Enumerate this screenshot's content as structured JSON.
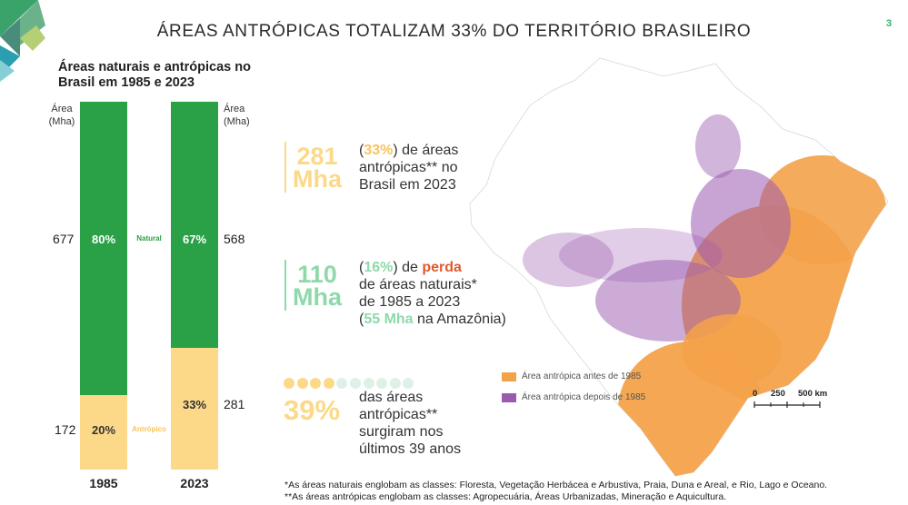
{
  "page": {
    "title": "ÁREAS ANTRÓPICAS TOTALIZAM 33% DO TERRITÓRIO BRASILEIRO",
    "page_number": "3"
  },
  "colors": {
    "natural": "#2aa147",
    "antropico": "#fcd988",
    "antropico_text": "#f7c35f",
    "natural_text": "#8ed9aa",
    "loss": "#e05a2b",
    "legend_orange": "#f4a24a",
    "legend_purple": "#9a5ab0"
  },
  "chart_data": {
    "type": "bar",
    "stacked": true,
    "title": "Áreas naturais e antrópicas no Brasil em 1985 e 2023",
    "ylabel": "Área (Mha)",
    "y_unit_left": [
      "Área",
      "(Mha)"
    ],
    "y_unit_right": [
      "Área",
      "(Mha)"
    ],
    "categories": [
      "1985",
      "2023"
    ],
    "series": [
      {
        "name": "Natural",
        "values": [
          677,
          568
        ],
        "percent_labels": [
          "80%",
          "67%"
        ]
      },
      {
        "name": "Antrópico",
        "values": [
          172,
          281
        ],
        "percent_labels": [
          "20%",
          "33%"
        ]
      }
    ],
    "left_values": [
      "677",
      "172"
    ],
    "right_values": [
      "568",
      "281"
    ]
  },
  "stats": {
    "s1": {
      "num": "281",
      "unit": "Mha",
      "lines": [
        [
          [
            "(",
            "n"
          ],
          [
            "33%",
            "a"
          ],
          [
            ") de áreas",
            "n"
          ]
        ],
        [
          [
            "antrópicas** no",
            "n"
          ]
        ],
        [
          [
            "Brasil em 2023",
            "n"
          ]
        ]
      ]
    },
    "s2": {
      "num": "110",
      "unit": "Mha",
      "lines": [
        [
          [
            "(",
            "n"
          ],
          [
            "16%",
            "g"
          ],
          [
            ") de ",
            "n"
          ],
          [
            "perda",
            "r"
          ]
        ],
        [
          [
            "de áreas naturais*",
            "n"
          ]
        ],
        [
          [
            "de 1985 a 2023",
            "n"
          ]
        ],
        [
          [
            "(",
            "n"
          ],
          [
            "55 Mha",
            "g"
          ],
          [
            " na Amazônia)",
            "n"
          ]
        ]
      ]
    },
    "s3": {
      "num": "39%",
      "dots_filled": 4,
      "dots_total": 10,
      "lines": [
        [
          [
            "das áreas",
            "n"
          ]
        ],
        [
          [
            "antrópicas**",
            "n"
          ]
        ],
        [
          [
            "surgiram nos",
            "n"
          ]
        ],
        [
          [
            "últimos 39 anos",
            "n"
          ]
        ]
      ]
    }
  },
  "legend": {
    "before": "Área antrópica antes de 1985",
    "after": "Área antrópica depois de 1985"
  },
  "scale": {
    "ticks": [
      "0",
      "250",
      "500 km"
    ]
  },
  "footnotes": {
    "natural": "*As áreas naturais englobam as classes: Floresta, Vegetação Herbácea e Arbustiva, Praia, Duna e Areal, e Rio, Lago e Oceano.",
    "antropico": "**As áreas antrópicas englobam as classes: Agropecuária, Áreas Urbanizadas, Mineração e Aquicultura."
  }
}
